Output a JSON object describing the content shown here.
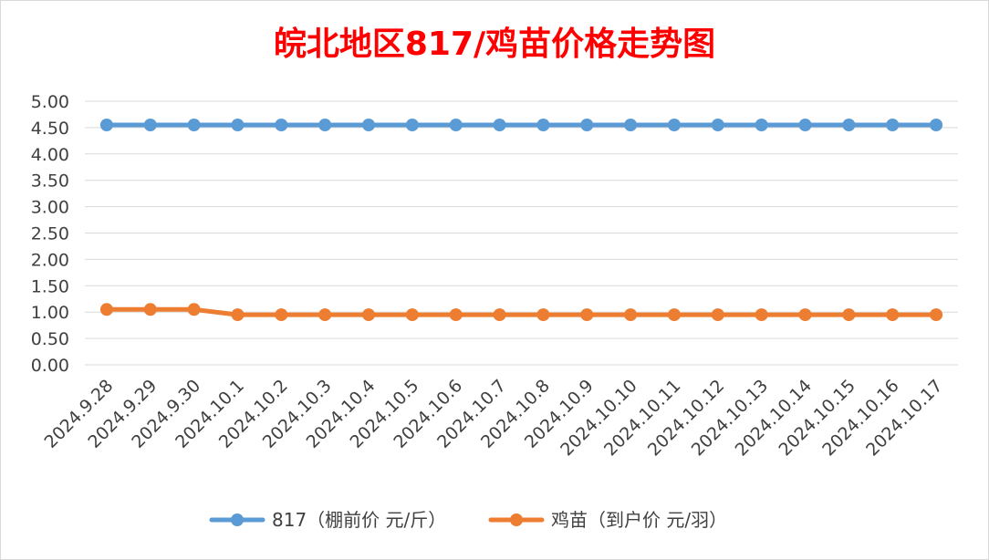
{
  "chart_data": {
    "type": "line",
    "title": "皖北地区817/鸡苗价格走势图",
    "categories": [
      "2024.9.28",
      "2024.9.29",
      "2024.9.30",
      "2024.10.1",
      "2024.10.2",
      "2024.10.3",
      "2024.10.4",
      "2024.10.5",
      "2024.10.6",
      "2024.10.7",
      "2024.10.8",
      "2024.10.9",
      "2024.10.10",
      "2024.10.11",
      "2024.10.12",
      "2024.10.13",
      "2024.10.14",
      "2024.10.15",
      "2024.10.16",
      "2024.10.17"
    ],
    "yticks": [
      "0.00",
      "0.50",
      "1.00",
      "1.50",
      "2.00",
      "2.50",
      "3.00",
      "3.50",
      "4.00",
      "4.50",
      "5.00"
    ],
    "ylim": [
      0,
      5
    ],
    "grid": true,
    "legend_position": "bottom",
    "series": [
      {
        "name": "817（棚前价 元/斤）",
        "color": "#5b9bd5",
        "values": [
          4.55,
          4.55,
          4.55,
          4.55,
          4.55,
          4.55,
          4.55,
          4.55,
          4.55,
          4.55,
          4.55,
          4.55,
          4.55,
          4.55,
          4.55,
          4.55,
          4.55,
          4.55,
          4.55,
          4.55
        ]
      },
      {
        "name": "鸡苗（到户价 元/羽）",
        "color": "#ed7d31",
        "values": [
          1.05,
          1.05,
          1.05,
          0.95,
          0.95,
          0.95,
          0.95,
          0.95,
          0.95,
          0.95,
          0.95,
          0.95,
          0.95,
          0.95,
          0.95,
          0.95,
          0.95,
          0.95,
          0.95,
          0.95
        ]
      }
    ]
  }
}
